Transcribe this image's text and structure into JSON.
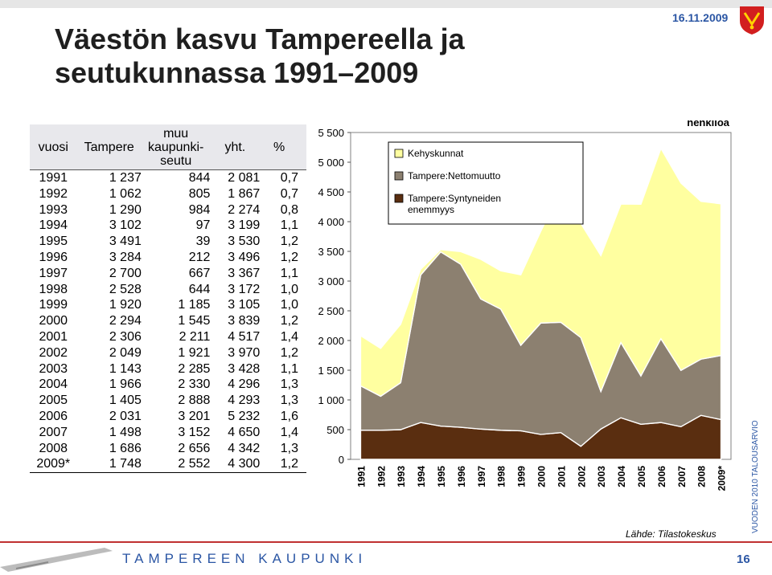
{
  "header": {
    "date": "16.11.2009",
    "title_line1": "Väestön kasvu Tampereella ja",
    "title_line2": "seutukunnassa 1991–2009"
  },
  "table": {
    "headers": [
      "vuosi",
      "Tampere",
      "muu kaupunki-seutu",
      "yht.",
      "%"
    ],
    "rows": [
      [
        "1991",
        "1 237",
        "844",
        "2 081",
        "0,7"
      ],
      [
        "1992",
        "1 062",
        "805",
        "1 867",
        "0,7"
      ],
      [
        "1993",
        "1 290",
        "984",
        "2 274",
        "0,8"
      ],
      [
        "1994",
        "3 102",
        "97",
        "3 199",
        "1,1"
      ],
      [
        "1995",
        "3 491",
        "39",
        "3 530",
        "1,2"
      ],
      [
        "1996",
        "3 284",
        "212",
        "3 496",
        "1,2"
      ],
      [
        "1997",
        "2 700",
        "667",
        "3 367",
        "1,1"
      ],
      [
        "1998",
        "2 528",
        "644",
        "3 172",
        "1,0"
      ],
      [
        "1999",
        "1 920",
        "1 185",
        "3 105",
        "1,0"
      ],
      [
        "2000",
        "2 294",
        "1 545",
        "3 839",
        "1,2"
      ],
      [
        "2001",
        "2 306",
        "2 211",
        "4 517",
        "1,4"
      ],
      [
        "2002",
        "2 049",
        "1 921",
        "3 970",
        "1,2"
      ],
      [
        "2003",
        "1 143",
        "2 285",
        "3 428",
        "1,1"
      ],
      [
        "2004",
        "1 966",
        "2 330",
        "4 296",
        "1,3"
      ],
      [
        "2005",
        "1 405",
        "2 888",
        "4 293",
        "1,3"
      ],
      [
        "2006",
        "2 031",
        "3 201",
        "5 232",
        "1,6"
      ],
      [
        "2007",
        "1 498",
        "3 152",
        "4 650",
        "1,4"
      ],
      [
        "2008",
        "1 686",
        "2 656",
        "4 342",
        "1,3"
      ],
      [
        "2009*",
        "1 748",
        "2 552",
        "4 300",
        "1,2"
      ]
    ]
  },
  "chart_data": {
    "type": "area",
    "stacked": true,
    "ylabel": "henkilöä",
    "ylim": [
      0,
      5500
    ],
    "yticks": [
      0,
      500,
      1000,
      1500,
      2000,
      2500,
      3000,
      3500,
      4000,
      4500,
      5000,
      5500
    ],
    "ytick_labels": [
      "0",
      "500",
      "1 000",
      "1 500",
      "2 000",
      "2 500",
      "3 000",
      "3 500",
      "4 000",
      "4 500",
      "5 000",
      "5 500"
    ],
    "categories": [
      "1991",
      "1992",
      "1993",
      "1994",
      "1995",
      "1996",
      "1997",
      "1998",
      "1999",
      "2000",
      "2001",
      "2002",
      "2003",
      "2004",
      "2005",
      "2006",
      "2007",
      "2008",
      "2009*"
    ],
    "series": [
      {
        "name": "Tampere:Syntyneiden enemmyys",
        "color": "#5a2e10",
        "values": [
          490,
          490,
          500,
          620,
          560,
          540,
          510,
          490,
          480,
          420,
          450,
          220,
          510,
          700,
          590,
          620,
          550,
          740,
          670
        ]
      },
      {
        "name": "Tampere:Nettomuutto",
        "color": "#8c8070",
        "values": [
          747,
          572,
          790,
          2482,
          2931,
          2744,
          2190,
          2038,
          1440,
          1874,
          1856,
          1829,
          633,
          1266,
          815,
          1411,
          948,
          946,
          1078
        ]
      },
      {
        "name": "Kehyskunnat",
        "color": "#ffffa0",
        "values": [
          844,
          805,
          984,
          97,
          39,
          212,
          667,
          644,
          1185,
          1545,
          2211,
          1921,
          2285,
          2330,
          2888,
          3201,
          3152,
          2656,
          2552
        ]
      }
    ],
    "legend": {
      "position": "top-left"
    },
    "grid": false
  },
  "footer": {
    "org": "TAMPEREEN KAUPUNKI",
    "page": "16",
    "side_text": "VUODEN 2010 TALOUSARVIO",
    "source": "Lähde: Tilastokeskus"
  }
}
